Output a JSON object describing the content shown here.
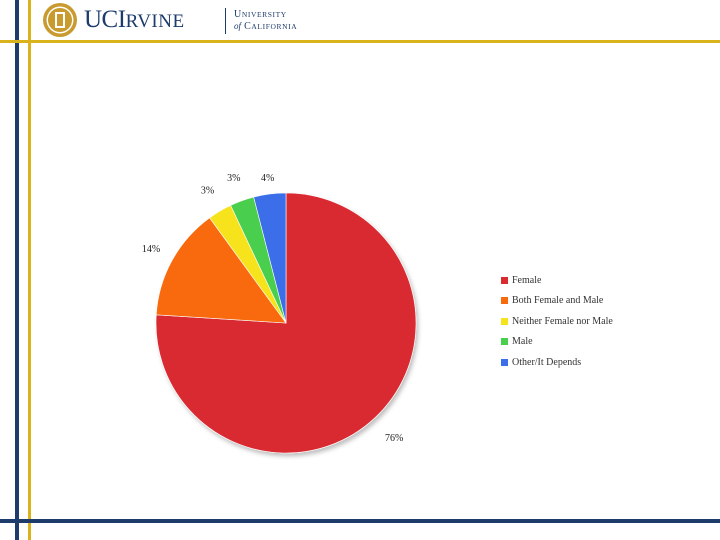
{
  "colors": {
    "navy": "#1d3b6b",
    "gold": "#d9b21c",
    "seal_gold": "#c99a2e"
  },
  "logo": {
    "name_uc": "UC",
    "name_i": "I",
    "name_rvine": "RVINE",
    "univ_u": "U",
    "univ_niversity": "NIVERSITY",
    "univ_of": "of",
    "univ_c": "C",
    "univ_alifornia": "ALIFORNIA"
  },
  "chart_data": {
    "type": "pie",
    "categories": [
      "Female",
      "Both Female and Male",
      "Neither Female nor Male",
      "Male",
      "Other/It Depends"
    ],
    "values": [
      76,
      14,
      3,
      3,
      4
    ],
    "labels": [
      "76%",
      "14%",
      "3%",
      "3%",
      "4%"
    ],
    "colors": [
      "#d92b30",
      "#f86a0b",
      "#f7e31b",
      "#49cf4e",
      "#3b6ee8"
    ],
    "start_angle_deg": 0,
    "direction": "clockwise",
    "legend_position": "right"
  }
}
